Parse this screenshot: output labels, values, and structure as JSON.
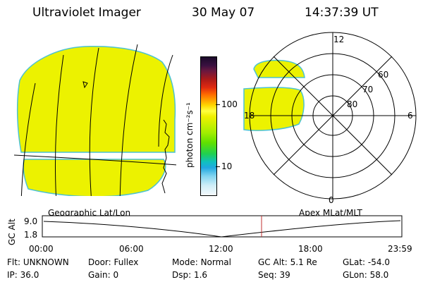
{
  "header": {
    "title": "Ultraviolet Imager",
    "date": "30 May 07",
    "time": "14:37:39 UT"
  },
  "colorbar": {
    "unit_label": "photon cm⁻²s⁻¹",
    "ticks": [
      {
        "label": "100",
        "value": 100
      },
      {
        "label": "10",
        "value": 10
      }
    ],
    "colors": [
      "#1a0a2a",
      "#2a1033",
      "#5a1a44",
      "#8a1a2a",
      "#cc1a1a",
      "#ee3a10",
      "#ff7a00",
      "#ffaa00",
      "#ffd000",
      "#ffff00",
      "#e8f000",
      "#c0f000",
      "#90ee00",
      "#50e000",
      "#10d060",
      "#10c0c0",
      "#10a0e0",
      "#70d0f0",
      "#c0ecf8",
      "#f0f8fc"
    ]
  },
  "geo_panel": {
    "label": "Geographic Lat/Lon",
    "fill_color": "#ecf200",
    "edge_color": "#4cc2d2"
  },
  "polar_panel": {
    "label": "Apex MLat/MLT",
    "mlt_labels": {
      "top": "12",
      "left": "18",
      "right": "6",
      "bottom": "0"
    },
    "lat_labels": [
      "60",
      "70",
      "80"
    ]
  },
  "timeline": {
    "ylabel": "GC Alt",
    "y_ticks": [
      "9.0",
      "1.8"
    ],
    "x_ticks": [
      "00:00",
      "06:00",
      "12:00",
      "18:00",
      "23:59"
    ],
    "marker_color": "#c03030"
  },
  "info": {
    "row1": [
      {
        "label": "Flt:",
        "value": "UNKNOWN"
      },
      {
        "label": "Door:",
        "value": "Fullex"
      },
      {
        "label": "Mode:",
        "value": "Normal"
      },
      {
        "label": "GC Alt:",
        "value": "5.1 Re"
      },
      {
        "label": "GLat:",
        "value": "-54.0"
      }
    ],
    "row2": [
      {
        "label": "IP:",
        "value": "36.0"
      },
      {
        "label": "Gain:",
        "value": "0"
      },
      {
        "label": "Dsp:",
        "value": "1.6"
      },
      {
        "label": "Seq:",
        "value": "39"
      },
      {
        "label": "GLon:",
        "value": "58.0"
      }
    ]
  }
}
